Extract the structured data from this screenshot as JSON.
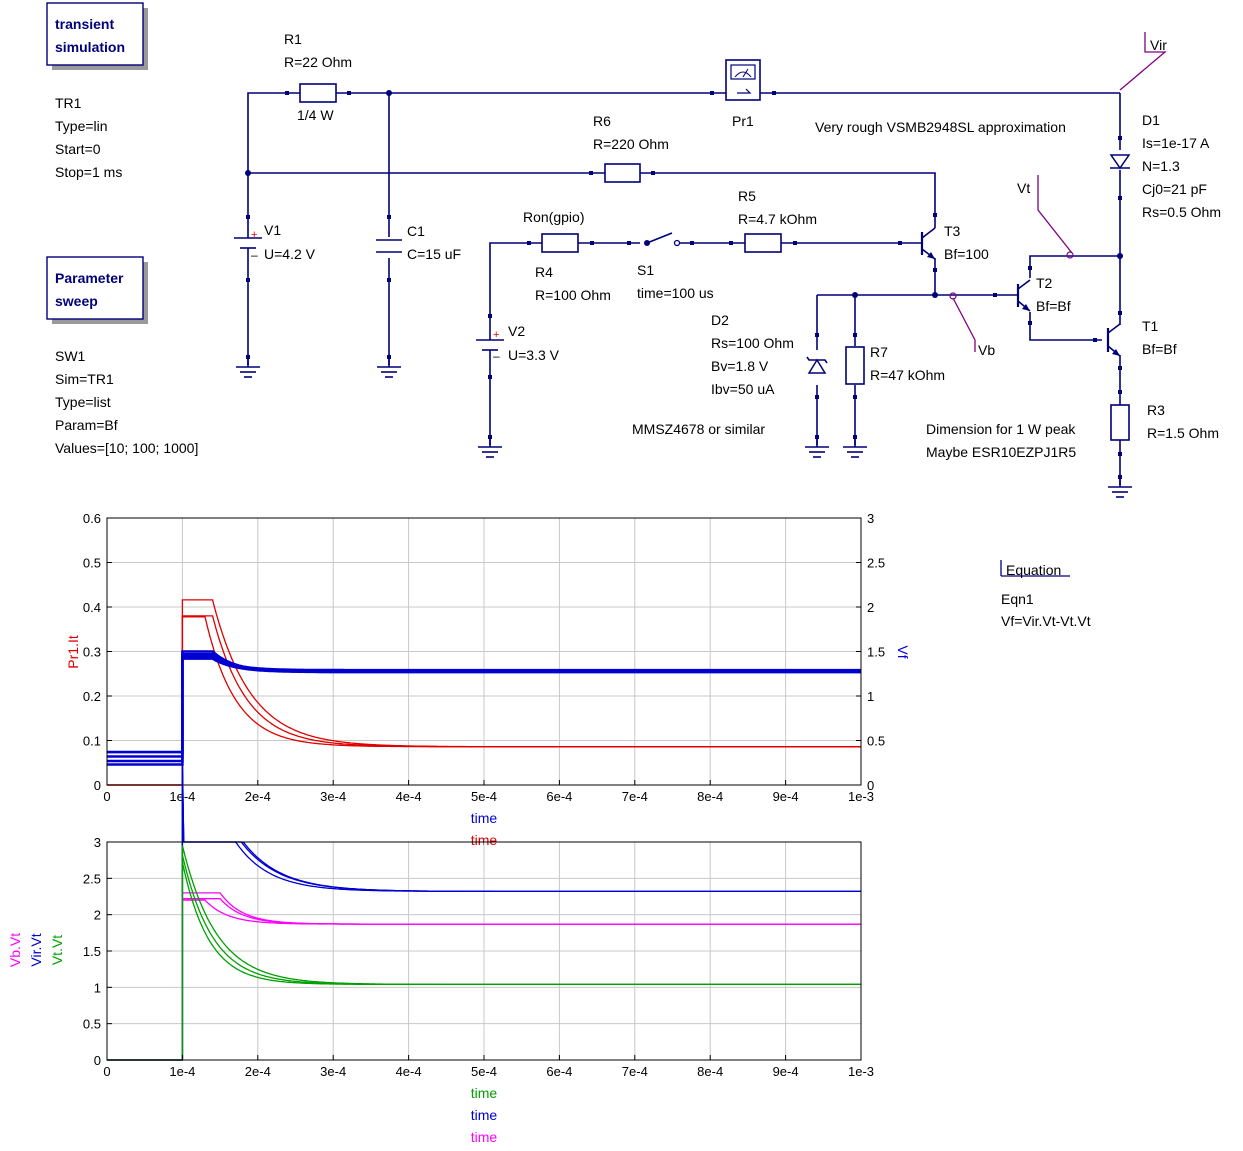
{
  "blocks": {
    "transient_sim": {
      "line1": "transient",
      "line2": "simulation"
    },
    "param_sweep": {
      "line1": "Parameter",
      "line2": "sweep"
    }
  },
  "tr1": [
    "TR1",
    "Type=lin",
    "Start=0",
    "Stop=1 ms"
  ],
  "sw1": [
    "SW1",
    "Sim=TR1",
    "Type=list",
    "Param=Bf",
    "Values=[10; 100; 1000]"
  ],
  "components": {
    "r1": [
      "R1",
      "R=22 Ohm",
      "1/4 W"
    ],
    "r6": [
      "R6",
      "R=220 Ohm"
    ],
    "r5": [
      "R5",
      "R=4.7 kOhm"
    ],
    "r4": [
      "R4",
      "R=100 Ohm"
    ],
    "ron": "Ron(gpio)",
    "s1": [
      "S1",
      "time=100 us"
    ],
    "v1": [
      "V1",
      "U=4.2 V"
    ],
    "v2": [
      "V2",
      "U=3.3 V"
    ],
    "c1": [
      "C1",
      "C=15 uF"
    ],
    "pr1": "Pr1",
    "d2": [
      "D2",
      "Rs=100 Ohm",
      "Bv=1.8 V",
      "Ibv=50 uA"
    ],
    "d2_note": "MMSZ4678 or similar",
    "r7": [
      "R7",
      "R=47 kOhm"
    ],
    "t3": [
      "T3",
      "Bf=100"
    ],
    "t2": [
      "T2",
      "Bf=Bf"
    ],
    "t1": [
      "T1",
      "Bf=Bf"
    ],
    "d1": [
      "D1",
      "Is=1e-17 A",
      "N=1.3",
      "Cj0=21 pF",
      "Rs=0.5 Ohm"
    ],
    "d1_note": "Very rough VSMB2948SL approximation",
    "r3": [
      "R3",
      "R=1.5 Ohm"
    ],
    "r3_note": [
      "Dimension for 1 W peak",
      "Maybe ESR10EZPJ1R5"
    ]
  },
  "wire_labels": {
    "vir": "Vir",
    "vt": "Vt",
    "vb": "Vb"
  },
  "equation": {
    "header": "Equation",
    "name": "Eqn1",
    "expr": "Vf=Vir.Vt-Vt.Vt"
  },
  "colors": {
    "wire": "#00007a",
    "label_wire": "#800080",
    "red": "#e00000",
    "blue": "#0000d0",
    "green": "#00a000",
    "magenta": "#ff00ff"
  },
  "chart_data": [
    {
      "type": "line",
      "x_ticks": [
        "0",
        "1e-4",
        "2e-4",
        "3e-4",
        "4e-4",
        "5e-4",
        "6e-4",
        "7e-4",
        "8e-4",
        "9e-4",
        "1e-3"
      ],
      "xlim": [
        0,
        0.001
      ],
      "y_ticks": [
        "0",
        "0.1",
        "0.2",
        "0.3",
        "0.4",
        "0.5",
        "0.6"
      ],
      "ylim": [
        0,
        0.6
      ],
      "y2_ticks": [
        "0",
        "0.5",
        "1",
        "1.5",
        "2",
        "2.5",
        "3"
      ],
      "y2lim": [
        0,
        3
      ],
      "ylabel": "Pr1.It",
      "y2label": "Vf",
      "xlabels": [
        "time",
        "time"
      ],
      "series": [
        {
          "name": "Pr1.It",
          "axis": "left",
          "color": "#e00000",
          "step": 0.0001,
          "tau": 5e-05,
          "plateau": 0.416,
          "hold": 4e-05,
          "final": 0.086,
          "start": 0
        },
        {
          "name": "Pr1.It",
          "axis": "left",
          "color": "#e00000",
          "step": 0.0001,
          "tau": 4.5e-05,
          "plateau": 0.38,
          "hold": 4e-05,
          "final": 0.086,
          "start": 0
        },
        {
          "name": "Pr1.It",
          "axis": "left",
          "color": "#e00000",
          "step": 0.0001,
          "tau": 4e-05,
          "plateau": 0.378,
          "hold": 3e-05,
          "final": 0.086,
          "start": 0
        },
        {
          "name": "Vf",
          "axis": "right",
          "color": "#0000d0",
          "step": 0.0001,
          "tau": 3e-05,
          "plateau": 1.5,
          "hold": 4e-05,
          "final": 1.27,
          "start": 0.37
        },
        {
          "name": "Vf",
          "axis": "right",
          "color": "#0000d0",
          "step": 0.0001,
          "tau": 3e-05,
          "plateau": 1.47,
          "hold": 4e-05,
          "final": 1.28,
          "start": 0.32
        },
        {
          "name": "Vf",
          "axis": "right",
          "color": "#0000d0",
          "step": 0.0001,
          "tau": 3e-05,
          "plateau": 1.44,
          "hold": 4e-05,
          "final": 1.29,
          "start": 0.27
        },
        {
          "name": "Vf",
          "axis": "right",
          "color": "#0000d0",
          "step": 0.0001,
          "tau": 3e-05,
          "plateau": 1.42,
          "hold": 4e-05,
          "final": 1.27,
          "start": 0.23
        }
      ]
    },
    {
      "type": "line",
      "x_ticks": [
        "0",
        "1e-4",
        "2e-4",
        "3e-4",
        "4e-4",
        "5e-4",
        "6e-4",
        "7e-4",
        "8e-4",
        "9e-4",
        "1e-3"
      ],
      "xlim": [
        0,
        0.001
      ],
      "y_ticks": [
        "0",
        "0.5",
        "1",
        "1.5",
        "2",
        "2.5",
        "3"
      ],
      "ylim": [
        0,
        3
      ],
      "ylabels": [
        "Vb.Vt",
        "Vir.Vt",
        "Vt.Vt"
      ],
      "xlabels": [
        "time",
        "time",
        "time"
      ],
      "series": [
        {
          "name": "Vir.Vt",
          "color": "#0000d0",
          "step": 0.0001,
          "tau": 5e-05,
          "plateau": 4.2,
          "hold": 3e-05,
          "final": 2.32,
          "start": 0
        },
        {
          "name": "Vir.Vt",
          "color": "#0000d0",
          "step": 0.0001,
          "tau": 5e-05,
          "plateau": 4.1,
          "hold": 3e-05,
          "final": 2.32,
          "start": 0
        },
        {
          "name": "Vir.Vt",
          "color": "#0000d0",
          "step": 0.0001,
          "tau": 4.5e-05,
          "plateau": 4.0,
          "hold": 3e-05,
          "final": 2.32,
          "start": 0
        },
        {
          "name": "Vb.Vt",
          "color": "#ff00ff",
          "step": 0.0001,
          "tau": 3e-05,
          "plateau": 2.3,
          "hold": 5e-05,
          "final": 1.87,
          "start": 0
        },
        {
          "name": "Vb.Vt",
          "color": "#ff00ff",
          "step": 0.0001,
          "tau": 3e-05,
          "plateau": 2.22,
          "hold": 5e-05,
          "final": 1.87,
          "start": 0
        },
        {
          "name": "Vb.Vt",
          "color": "#ff00ff",
          "step": 0.0001,
          "tau": 3e-05,
          "plateau": 2.2,
          "hold": 3e-05,
          "final": 1.87,
          "start": 0
        },
        {
          "name": "Vt.Vt",
          "color": "#00a000",
          "step": 0.0001,
          "tau": 4.5e-05,
          "plateau": 2.95,
          "hold": 0.0,
          "final": 1.04,
          "start": 0
        },
        {
          "name": "Vt.Vt",
          "color": "#00a000",
          "step": 0.0001,
          "tau": 4e-05,
          "plateau": 2.82,
          "hold": 0.0,
          "final": 1.04,
          "start": 0
        },
        {
          "name": "Vt.Vt",
          "color": "#00a000",
          "step": 0.0001,
          "tau": 3.5e-05,
          "plateau": 2.72,
          "hold": 0.0,
          "final": 1.04,
          "start": 0
        }
      ]
    }
  ]
}
